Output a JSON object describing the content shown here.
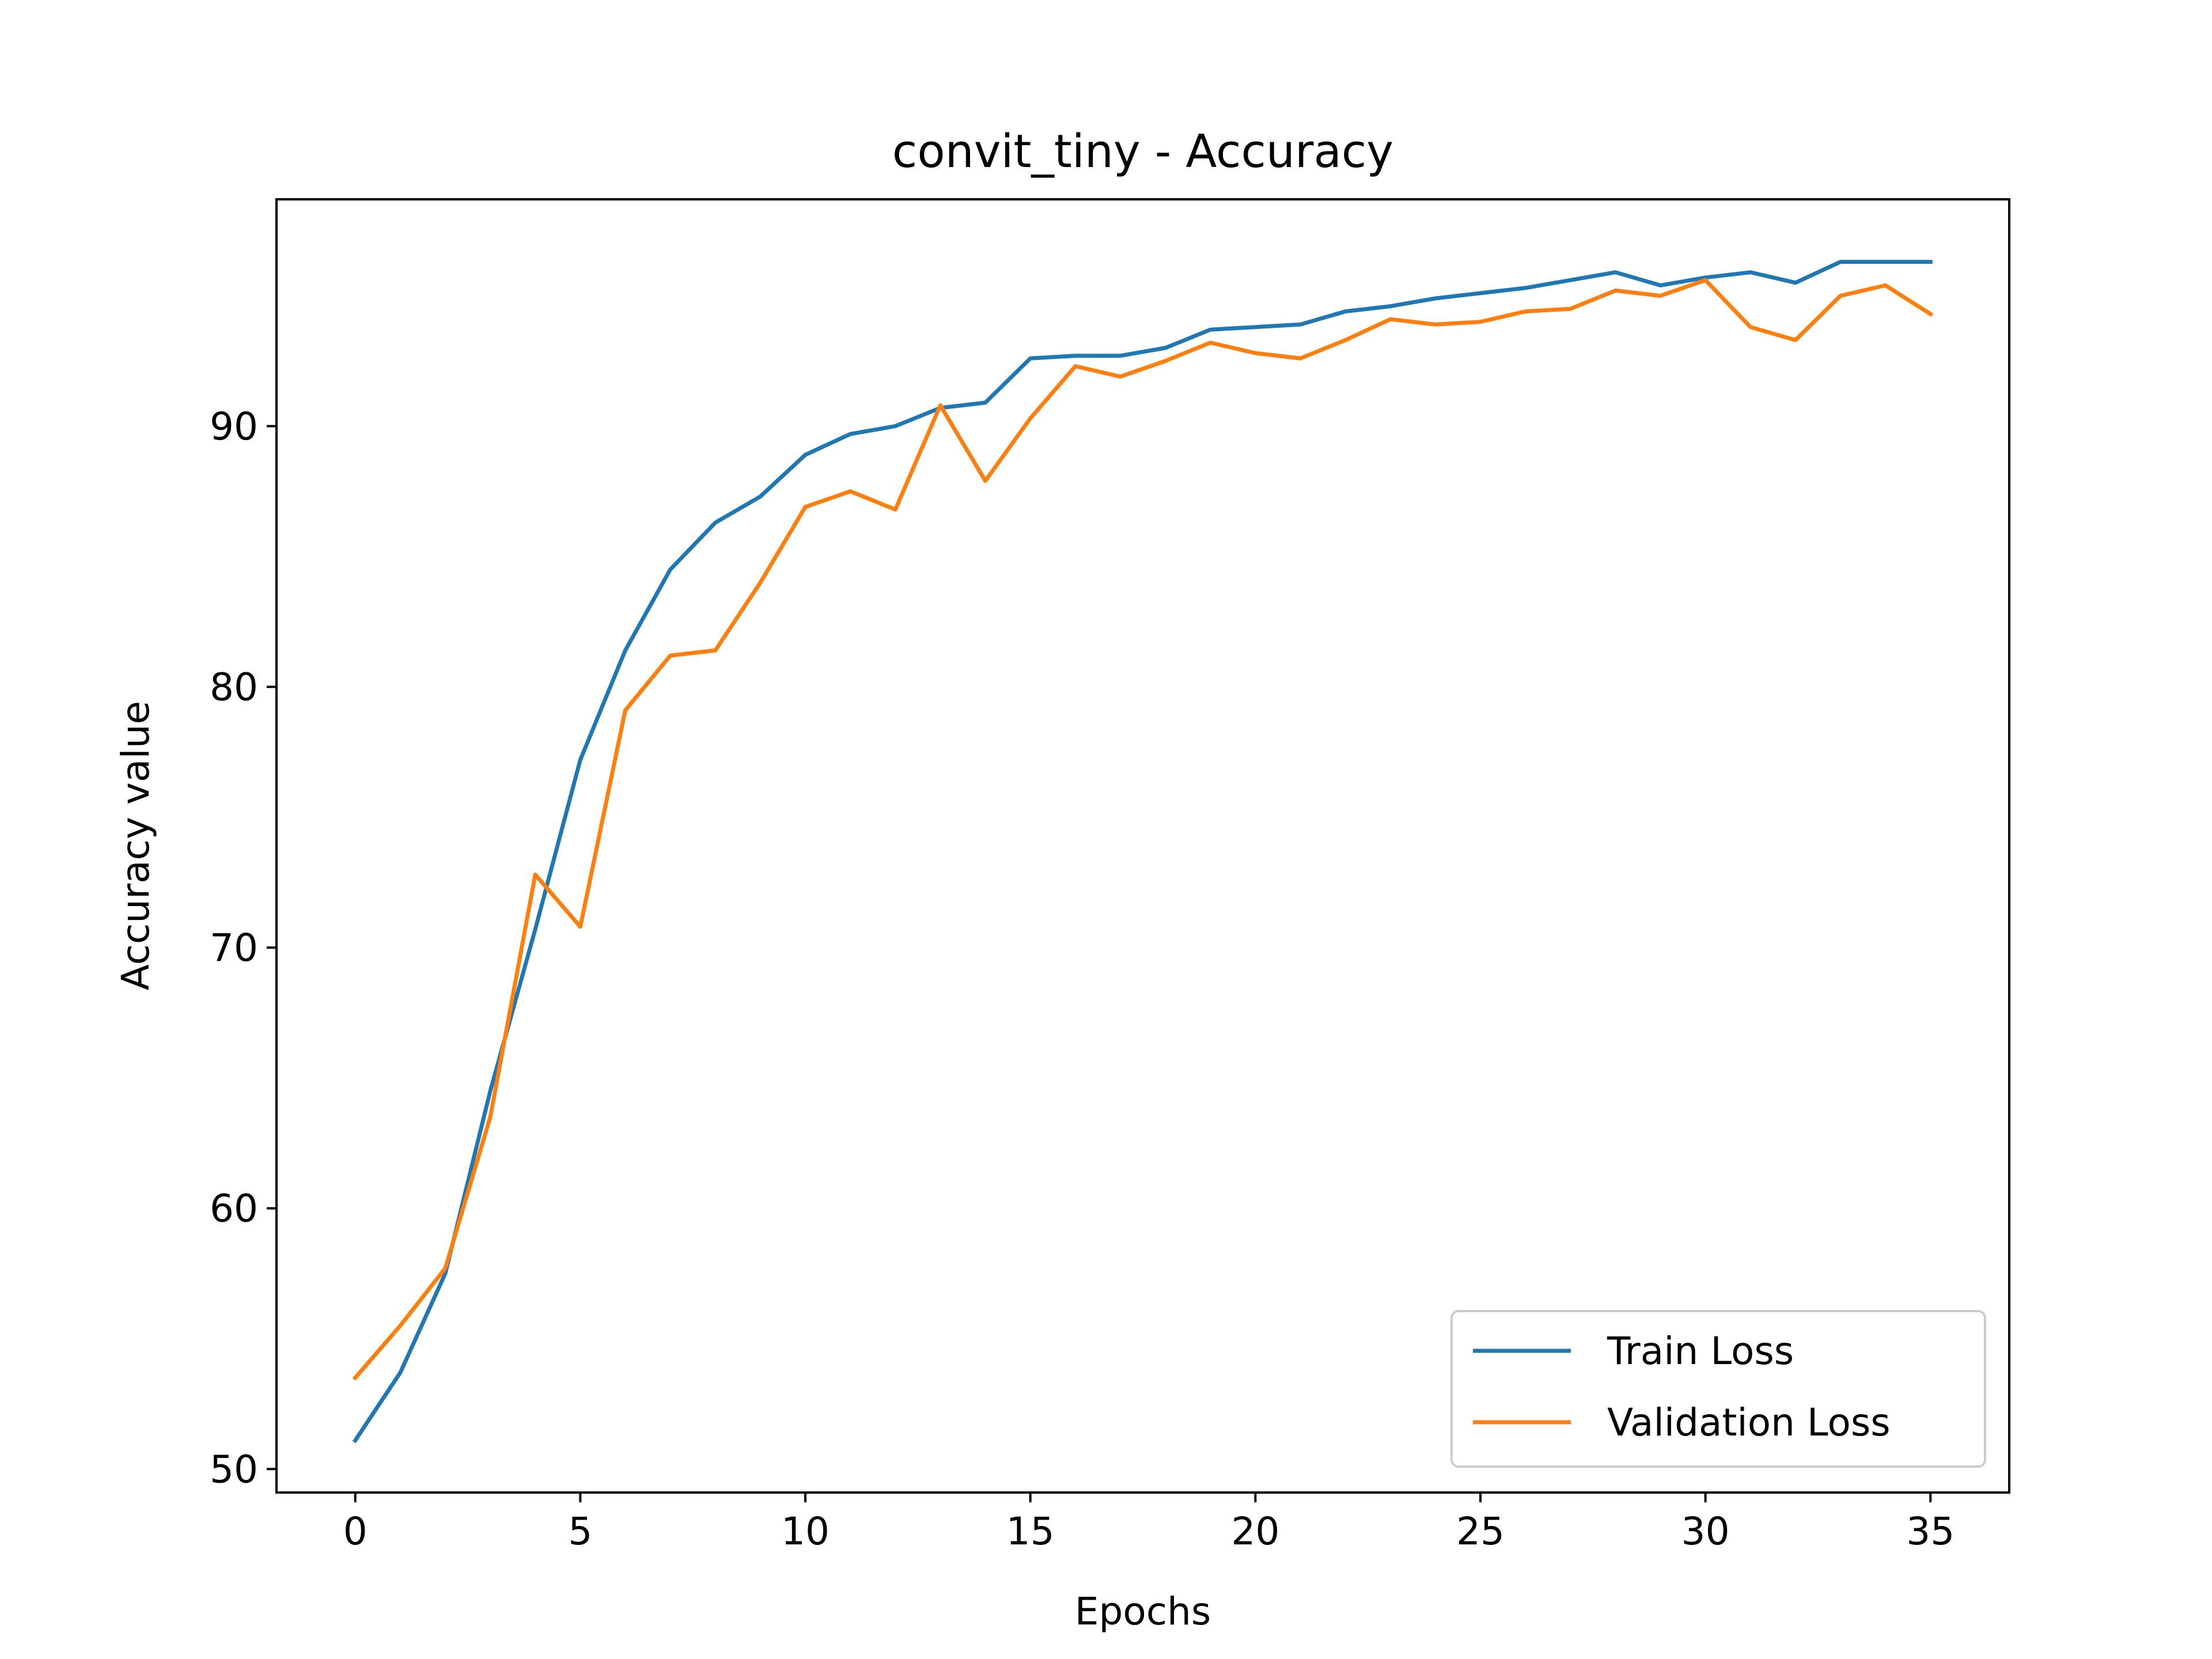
{
  "chart_data": {
    "type": "line",
    "title": "convit_tiny - Accuracy",
    "xlabel": "Epochs",
    "ylabel": "Accuracy value",
    "xlim": [
      -1.75,
      36.75
    ],
    "ylim": [
      49.1,
      98.7
    ],
    "xticks": [
      0,
      5,
      10,
      15,
      20,
      25,
      30,
      35
    ],
    "yticks": [
      50,
      60,
      70,
      80,
      90
    ],
    "grid": false,
    "legend_position": "lower-right",
    "x": [
      0,
      1,
      2,
      3,
      4,
      5,
      6,
      7,
      8,
      9,
      10,
      11,
      12,
      13,
      14,
      15,
      16,
      17,
      18,
      19,
      20,
      21,
      22,
      23,
      24,
      25,
      26,
      27,
      28,
      29,
      30,
      31,
      32,
      33,
      34,
      35
    ],
    "series": [
      {
        "name": "Train Loss",
        "color": "#1f77b4",
        "values": [
          51.1,
          53.7,
          57.5,
          64.5,
          70.7,
          77.2,
          81.4,
          84.5,
          86.3,
          87.3,
          88.9,
          89.7,
          90.0,
          90.7,
          90.9,
          92.6,
          92.7,
          92.7,
          93.0,
          93.7,
          93.8,
          93.9,
          94.4,
          94.6,
          94.9,
          95.1,
          95.3,
          95.6,
          95.9,
          95.4,
          95.7,
          95.9,
          95.5,
          96.3,
          96.3,
          96.3
        ]
      },
      {
        "name": "Validation Loss",
        "color": "#ff7f0e",
        "values": [
          53.5,
          55.5,
          57.7,
          63.5,
          72.8,
          70.8,
          79.1,
          81.2,
          81.4,
          84.0,
          86.9,
          87.5,
          86.8,
          90.8,
          87.9,
          90.3,
          92.3,
          91.9,
          92.5,
          93.2,
          92.8,
          92.6,
          93.3,
          94.1,
          93.9,
          94.0,
          94.4,
          94.5,
          95.2,
          95.0,
          95.6,
          93.8,
          93.3,
          95.0,
          95.4,
          94.3
        ]
      }
    ]
  }
}
